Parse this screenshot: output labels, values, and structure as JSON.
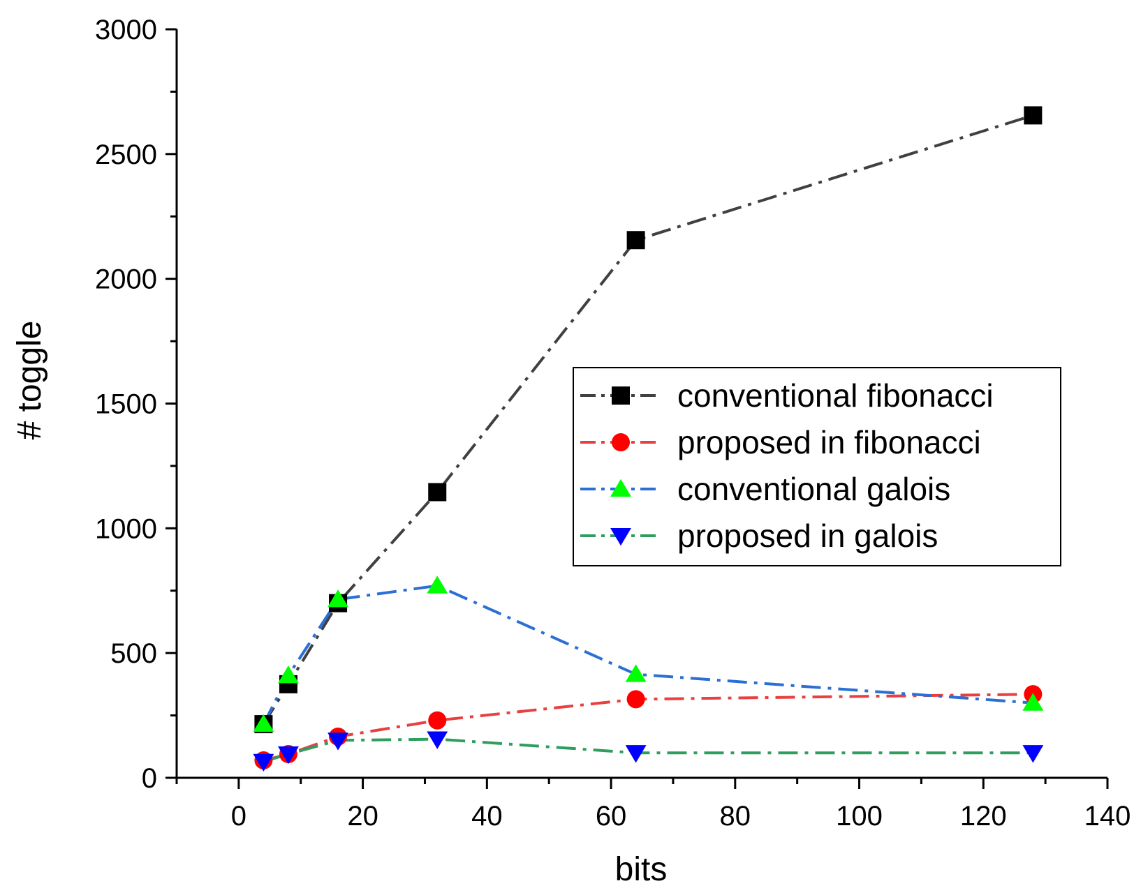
{
  "chart_data": {
    "type": "line",
    "title": "",
    "xlabel": "bits",
    "ylabel": "# toggle",
    "xlim": [
      -10,
      140
    ],
    "ylim": [
      0,
      3000
    ],
    "xticks": [
      0,
      20,
      40,
      60,
      80,
      100,
      120,
      140
    ],
    "yticks": [
      0,
      500,
      1000,
      1500,
      2000,
      2500,
      3000
    ],
    "x": [
      4,
      8,
      16,
      32,
      64,
      128
    ],
    "series": [
      {
        "name": "conventional fibonacci",
        "values": [
          215,
          375,
          700,
          1145,
          2155,
          2655
        ],
        "color": "#404040",
        "marker": "square",
        "marker_color": "#000000"
      },
      {
        "name": "proposed in fibonacci",
        "values": [
          70,
          95,
          165,
          230,
          315,
          335
        ],
        "color": "#e84040",
        "marker": "circle",
        "marker_color": "#ff0000"
      },
      {
        "name": "conventional galois",
        "values": [
          215,
          410,
          715,
          770,
          415,
          300
        ],
        "color": "#2a6fd6",
        "marker": "triangle-up",
        "marker_color": "#00ff00"
      },
      {
        "name": "proposed in galois",
        "values": [
          65,
          95,
          150,
          155,
          100,
          100
        ],
        "color": "#2e9e5e",
        "marker": "triangle-down",
        "marker_color": "#0000ff"
      }
    ],
    "legend_position": "center-right"
  }
}
